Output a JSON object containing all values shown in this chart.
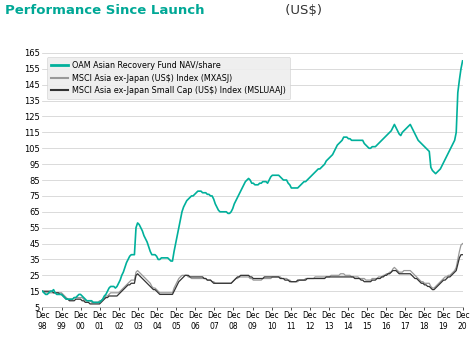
{
  "title": "Performance Since Launch",
  "title_color": "#00a896",
  "title_suffix": " (US$)",
  "title_suffix_color": "#333333",
  "ylim": [
    5,
    165
  ],
  "yticks": [
    5,
    15,
    25,
    35,
    45,
    55,
    65,
    75,
    85,
    95,
    105,
    115,
    125,
    135,
    145,
    155,
    165
  ],
  "background_color": "#ffffff",
  "legend_bg": "#eeeeee",
  "oam_color": "#00b09b",
  "msci_color": "#999999",
  "msci_sc_color": "#333333",
  "legend_labels": [
    "OAM Asian Recovery Fund NAV/share",
    "MSCI Asia ex-Japan (US$) Index (MXASJ)",
    "MSCI Asia ex-Japan Small Cap (US$) Index (MSLUAAJ)"
  ],
  "xtick_labels": [
    "Dec\n98",
    "Dec\n99",
    "Dec\n00",
    "Dec\n01",
    "Dec\n02",
    "Dec\n03",
    "Dec\n04",
    "Dec\n05",
    "Dec\n06",
    "Dec\n07",
    "Dec\n08",
    "Dec\n09",
    "Dec\n10",
    "Dec\n11",
    "Dec\n12",
    "Dec\n13",
    "Dec\n14",
    "Dec\n15",
    "Dec\n16",
    "Dec\n17",
    "Dec\n18",
    "Dec\n19",
    "Dec\n20"
  ],
  "oam_values": [
    15,
    14,
    13,
    13,
    14,
    15,
    15,
    16,
    14,
    13,
    13,
    13,
    13,
    12,
    11,
    10,
    10,
    10,
    10,
    10,
    11,
    11,
    12,
    13,
    13,
    12,
    11,
    10,
    9,
    9,
    9,
    9,
    8,
    8,
    8,
    8,
    8,
    9,
    10,
    12,
    13,
    15,
    17,
    18,
    18,
    18,
    17,
    18,
    20,
    22,
    25,
    27,
    30,
    33,
    35,
    37,
    38,
    38,
    38,
    55,
    58,
    57,
    55,
    53,
    50,
    48,
    46,
    43,
    40,
    38,
    38,
    38,
    37,
    35,
    35,
    36,
    36,
    36,
    36,
    36,
    35,
    34,
    34,
    40,
    45,
    50,
    55,
    60,
    65,
    68,
    70,
    72,
    73,
    74,
    75,
    75,
    76,
    77,
    78,
    78,
    78,
    77,
    77,
    77,
    76,
    76,
    75,
    75,
    73,
    70,
    68,
    66,
    65,
    65,
    65,
    65,
    65,
    64,
    64,
    65,
    67,
    70,
    72,
    74,
    76,
    78,
    80,
    82,
    84,
    85,
    86,
    85,
    83,
    83,
    82,
    82,
    82,
    83,
    83,
    84,
    84,
    84,
    83,
    85,
    87,
    88,
    88,
    88,
    88,
    88,
    87,
    86,
    85,
    85,
    85,
    83,
    82,
    80,
    80,
    80,
    80,
    80,
    81,
    82,
    83,
    84,
    84,
    85,
    86,
    87,
    88,
    89,
    90,
    91,
    92,
    92,
    93,
    94,
    95,
    97,
    98,
    99,
    100,
    101,
    103,
    105,
    107,
    108,
    109,
    110,
    112,
    112,
    112,
    111,
    111,
    110,
    110,
    110,
    110,
    110,
    110,
    110,
    110,
    108,
    107,
    106,
    105,
    105,
    106,
    106,
    106,
    107,
    108,
    109,
    110,
    111,
    112,
    113,
    114,
    115,
    116,
    118,
    120,
    118,
    116,
    114,
    113,
    115,
    116,
    117,
    118,
    119,
    120,
    118,
    116,
    114,
    112,
    110,
    109,
    108,
    107,
    106,
    105,
    104,
    103,
    93,
    91,
    90,
    89,
    90,
    91,
    92,
    94,
    96,
    98,
    100,
    102,
    104,
    106,
    108,
    110,
    115,
    140,
    148,
    155,
    160
  ],
  "msci_values": [
    15,
    14,
    14,
    14,
    14,
    14,
    14,
    14,
    14,
    14,
    14,
    14,
    14,
    13,
    12,
    11,
    10,
    10,
    10,
    10,
    11,
    11,
    11,
    11,
    11,
    11,
    10,
    9,
    9,
    9,
    9,
    8,
    8,
    8,
    8,
    8,
    9,
    9,
    10,
    11,
    12,
    12,
    13,
    14,
    14,
    14,
    14,
    14,
    14,
    15,
    16,
    17,
    18,
    19,
    20,
    21,
    22,
    22,
    22,
    27,
    28,
    27,
    26,
    25,
    24,
    23,
    22,
    21,
    20,
    18,
    17,
    17,
    16,
    15,
    14,
    14,
    14,
    14,
    14,
    14,
    14,
    14,
    14,
    17,
    19,
    21,
    23,
    24,
    25,
    25,
    25,
    25,
    24,
    24,
    23,
    23,
    23,
    23,
    23,
    23,
    23,
    23,
    23,
    23,
    22,
    22,
    22,
    21,
    21,
    20,
    20,
    20,
    20,
    20,
    20,
    20,
    20,
    20,
    20,
    20,
    21,
    22,
    23,
    23,
    24,
    24,
    24,
    24,
    24,
    24,
    24,
    23,
    23,
    22,
    22,
    22,
    22,
    22,
    22,
    23,
    23,
    23,
    23,
    23,
    23,
    24,
    24,
    24,
    24,
    24,
    24,
    23,
    23,
    23,
    23,
    22,
    22,
    21,
    21,
    21,
    21,
    21,
    22,
    22,
    22,
    22,
    23,
    23,
    23,
    23,
    23,
    23,
    24,
    24,
    24,
    24,
    24,
    24,
    24,
    24,
    24,
    24,
    25,
    25,
    25,
    25,
    25,
    25,
    26,
    26,
    26,
    25,
    25,
    25,
    25,
    24,
    24,
    24,
    24,
    24,
    23,
    23,
    23,
    23,
    22,
    22,
    22,
    22,
    23,
    23,
    23,
    23,
    24,
    24,
    24,
    25,
    25,
    26,
    26,
    27,
    27,
    29,
    30,
    29,
    28,
    27,
    27,
    27,
    28,
    28,
    28,
    28,
    28,
    27,
    26,
    25,
    24,
    23,
    22,
    21,
    21,
    20,
    20,
    20,
    20,
    18,
    17,
    17,
    18,
    19,
    20,
    21,
    22,
    23,
    24,
    24,
    25,
    25,
    26,
    27,
    28,
    30,
    35,
    40,
    44,
    45
  ],
  "msci_sc_values": [
    15,
    15,
    15,
    15,
    15,
    15,
    15,
    14,
    14,
    14,
    14,
    13,
    13,
    12,
    11,
    10,
    10,
    9,
    9,
    9,
    9,
    10,
    10,
    10,
    10,
    9,
    9,
    8,
    8,
    8,
    7,
    7,
    7,
    7,
    7,
    7,
    7,
    8,
    9,
    10,
    11,
    11,
    12,
    12,
    12,
    12,
    12,
    12,
    13,
    14,
    15,
    16,
    17,
    18,
    19,
    19,
    20,
    20,
    20,
    25,
    26,
    25,
    24,
    23,
    22,
    21,
    20,
    19,
    18,
    17,
    16,
    16,
    15,
    14,
    13,
    13,
    13,
    13,
    13,
    13,
    13,
    13,
    13,
    15,
    17,
    19,
    21,
    22,
    23,
    24,
    25,
    25,
    25,
    24,
    24,
    24,
    24,
    24,
    24,
    24,
    24,
    24,
    23,
    23,
    22,
    22,
    22,
    21,
    20,
    20,
    20,
    20,
    20,
    20,
    20,
    20,
    20,
    20,
    20,
    20,
    21,
    22,
    23,
    24,
    24,
    25,
    25,
    25,
    25,
    25,
    25,
    24,
    24,
    23,
    23,
    23,
    23,
    23,
    23,
    23,
    24,
    24,
    24,
    24,
    24,
    24,
    24,
    24,
    24,
    24,
    23,
    23,
    23,
    22,
    22,
    22,
    21,
    21,
    21,
    21,
    21,
    22,
    22,
    22,
    22,
    22,
    22,
    23,
    23,
    23,
    23,
    23,
    23,
    23,
    23,
    23,
    23,
    23,
    23,
    24,
    24,
    24,
    24,
    24,
    24,
    24,
    24,
    24,
    24,
    24,
    24,
    24,
    24,
    24,
    24,
    24,
    24,
    23,
    23,
    23,
    23,
    22,
    22,
    21,
    21,
    21,
    21,
    21,
    22,
    22,
    22,
    23,
    23,
    23,
    24,
    24,
    25,
    25,
    26,
    26,
    27,
    28,
    28,
    28,
    27,
    26,
    26,
    26,
    26,
    26,
    26,
    26,
    26,
    25,
    24,
    23,
    23,
    22,
    21,
    20,
    20,
    19,
    19,
    18,
    18,
    17,
    16,
    16,
    17,
    18,
    19,
    20,
    21,
    22,
    22,
    23,
    24,
    24,
    25,
    26,
    27,
    28,
    32,
    36,
    38,
    38
  ]
}
